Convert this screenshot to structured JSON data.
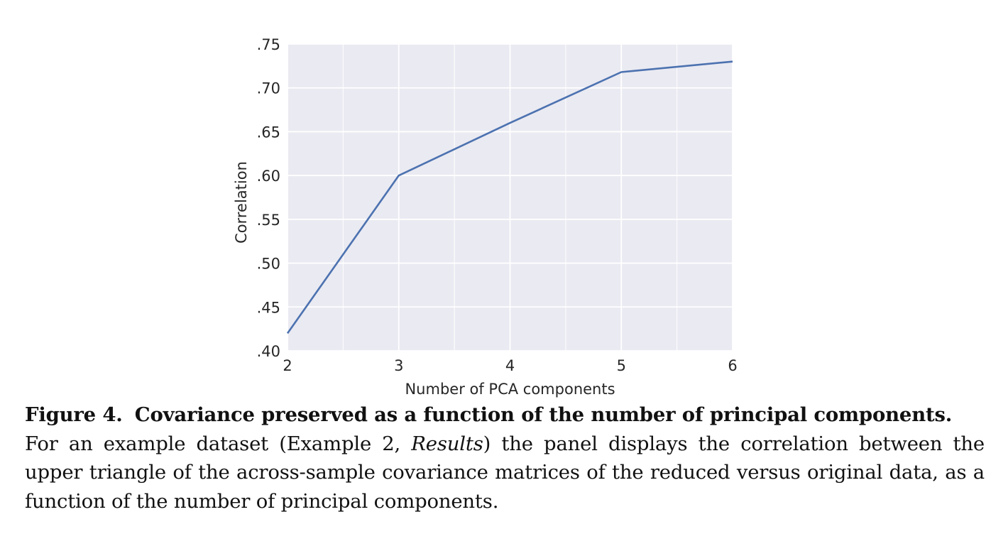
{
  "chart_data": {
    "type": "line",
    "xlabel": "Number of PCA components",
    "ylabel": "Correlation",
    "x": [
      2,
      3,
      4,
      5,
      6
    ],
    "x_ticks": [
      "2",
      "3",
      "4",
      "5",
      "6"
    ],
    "y_ticks": [
      ".40",
      ".45",
      ".50",
      ".55",
      ".60",
      ".65",
      ".70",
      ".75"
    ],
    "xlim": [
      2,
      6
    ],
    "ylim": [
      0.4,
      0.75
    ],
    "grid": true,
    "series": [
      {
        "values": [
          0.42,
          0.6,
          0.66,
          0.718,
          0.73
        ]
      }
    ],
    "colors": {
      "background": "#eaeaf2",
      "grid": "#ffffff",
      "line": "#4c72b0"
    }
  },
  "caption": {
    "label": "Figure 4.",
    "title": "Covariance preserved as a function of the number of principal components.",
    "text_1": "For an example dataset (Example 2, ",
    "text_italic": "Results",
    "text_2": ") the panel displays the correlation between the",
    "text_3": "upper triangle of the across-sample covariance matrices of the reduced versus original data, as a",
    "text_4": "function of the number of principal components."
  }
}
